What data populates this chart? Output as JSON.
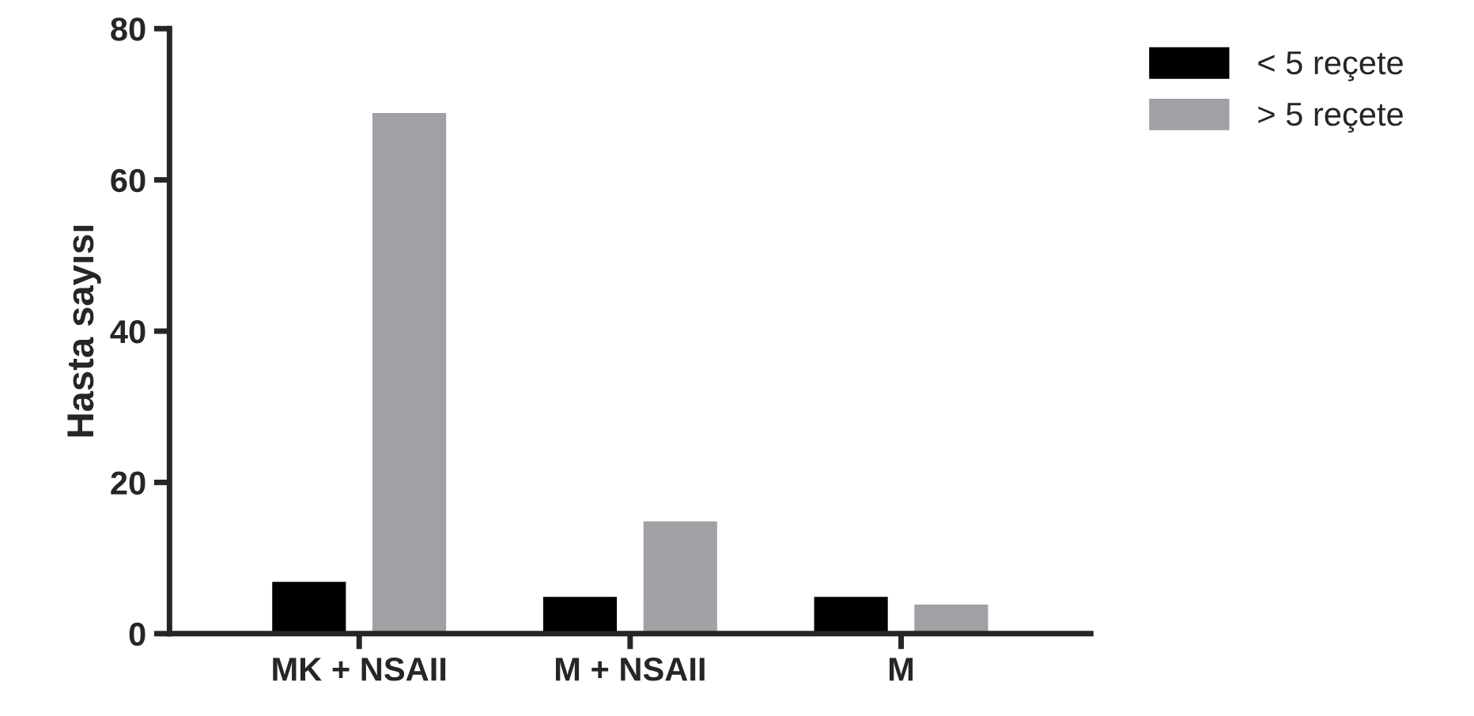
{
  "chart_data": {
    "type": "bar",
    "ylabel": "Hasta sayısı",
    "categories": [
      "MK + NSAII",
      "M + NSAII",
      "M"
    ],
    "series": [
      {
        "name": "< 5 reçete",
        "color": "#000000",
        "values": [
          7,
          5,
          5
        ]
      },
      {
        "name": "> 5 reçete",
        "color": "#a0a0a5",
        "values": [
          69,
          15,
          4
        ]
      }
    ],
    "ylim": [
      0,
      80
    ],
    "yticks": [
      0,
      20,
      40,
      60,
      80
    ],
    "grid": false,
    "legend": "top right"
  }
}
